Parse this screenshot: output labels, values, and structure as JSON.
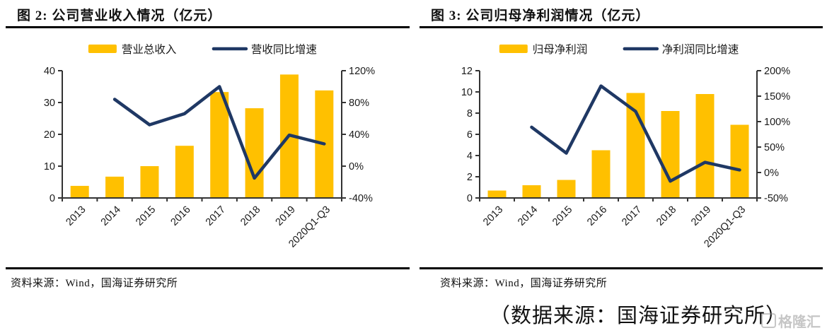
{
  "page": {
    "caption": "（数据来源：国海证券研究所）",
    "watermark": "格隆汇",
    "background": "#ffffff"
  },
  "colors": {
    "bar": "#FFC000",
    "line": "#1F3864",
    "axis": "#333333",
    "rule": "#000000"
  },
  "chart_data": [
    {
      "type": "combo",
      "title": "图 2:  公司营业收入情况（亿元）",
      "source": "资料来源：Wind，国海证券研究所",
      "categories": [
        "2013",
        "2014",
        "2015",
        "2016",
        "2017",
        "2018",
        "2019",
        "2020Q1-Q3"
      ],
      "series": [
        {
          "name": "营业总收入",
          "type": "bar",
          "axis": "left",
          "color": "#FFC000",
          "values": [
            3.8,
            6.7,
            10.0,
            16.4,
            33.3,
            28.2,
            38.8,
            33.8
          ]
        },
        {
          "name": "营收同比增速",
          "type": "line",
          "axis": "right",
          "color": "#1F3864",
          "unit": "%",
          "values": [
            null,
            84,
            52,
            66,
            100,
            -15,
            39,
            28
          ]
        }
      ],
      "axes": {
        "left": {
          "min": 0,
          "max": 40,
          "ticks": [
            0,
            10,
            20,
            30,
            40
          ]
        },
        "right": {
          "min": -40,
          "max": 120,
          "ticks": [
            "-40%",
            "0%",
            "40%",
            "80%",
            "120%"
          ]
        }
      },
      "legend_position": "top",
      "grid": false
    },
    {
      "type": "combo",
      "title": "图 3:  公司归母净利润情况（亿元）",
      "source": "资料来源：Wind，国海证券研究所",
      "categories": [
        "2013",
        "2014",
        "2015",
        "2016",
        "2017",
        "2018",
        "2019",
        "2020Q1-Q3"
      ],
      "series": [
        {
          "name": "归母净利润",
          "type": "bar",
          "axis": "left",
          "color": "#FFC000",
          "values": [
            0.7,
            1.2,
            1.7,
            4.5,
            9.9,
            8.2,
            9.8,
            6.9
          ]
        },
        {
          "name": "净利润同比增速",
          "type": "line",
          "axis": "right",
          "color": "#1F3864",
          "unit": "%",
          "values": [
            null,
            89,
            38,
            170,
            120,
            -17,
            20,
            5
          ]
        }
      ],
      "axes": {
        "left": {
          "min": 0,
          "max": 12,
          "ticks": [
            0,
            2,
            4,
            6,
            8,
            10,
            12
          ]
        },
        "right": {
          "min": -50,
          "max": 200,
          "ticks": [
            "-50%",
            "0%",
            "50%",
            "100%",
            "150%",
            "200%"
          ]
        }
      },
      "legend_position": "top",
      "grid": false
    }
  ]
}
